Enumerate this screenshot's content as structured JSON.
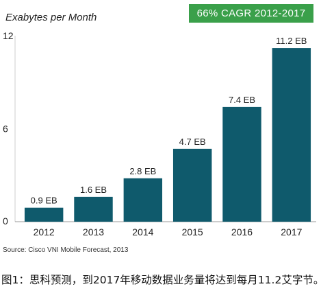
{
  "chart_data": {
    "type": "bar",
    "title": "Exabytes per Month",
    "categories": [
      "2012",
      "2013",
      "2014",
      "2015",
      "2016",
      "2017"
    ],
    "values": [
      0.9,
      1.6,
      2.8,
      4.7,
      7.4,
      11.2
    ],
    "data_labels": [
      "0.9 EB",
      "1.6 EB",
      "2.8 EB",
      "4.7 EB",
      "7.4 EB",
      "11.2 EB"
    ],
    "yticks": [
      0,
      6,
      12
    ],
    "ylim": [
      0,
      12
    ],
    "grid": false,
    "legend": "none",
    "bar_color": "#0f5a6c",
    "annotation": "66% CAGR 2012-2017",
    "annotation_color": "#3aa04a"
  },
  "source": "Source: Cisco VNI Mobile Forecast, 2013",
  "caption": "图1：思科预测，到2017年移动数据业务量将达到每月11.2艾字节。"
}
